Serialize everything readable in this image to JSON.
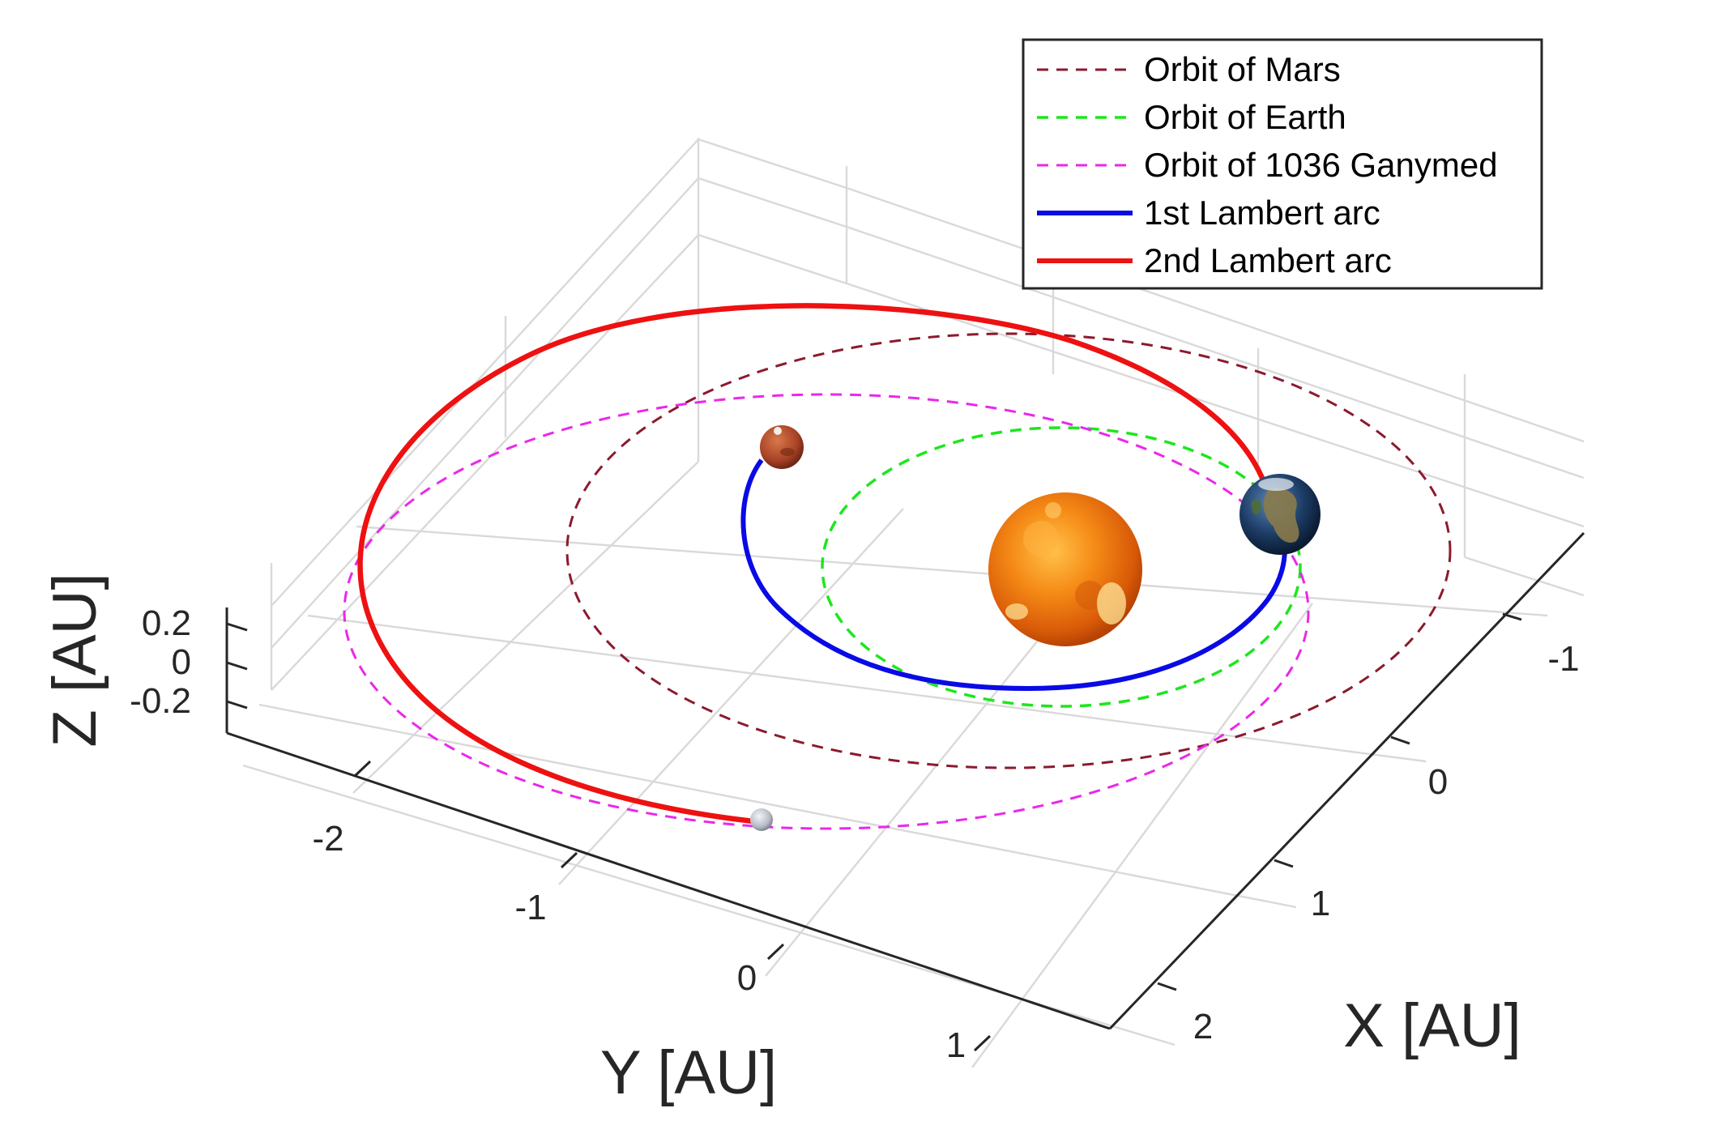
{
  "chart_data": {
    "type": "line",
    "view": "3d-perspective",
    "xlabel": "X [AU]",
    "ylabel": "Y [AU]",
    "zlabel": "Z [AU]",
    "x_ticks": [
      "-1",
      "0",
      "1",
      "2"
    ],
    "y_ticks": [
      "-2",
      "-1",
      "0",
      "1"
    ],
    "z_ticks": [
      "0.2",
      "0",
      "-0.2"
    ],
    "xlim": [
      -1.5,
      2.5
    ],
    "ylim": [
      -2.5,
      1.5
    ],
    "zlim": [
      -0.3,
      0.3
    ],
    "grid": true,
    "legend_position": "top-right",
    "series": [
      {
        "name": "Orbit of Mars",
        "color": "#8b1a2e",
        "style": "dashed",
        "semi_major_axis_au": 1.52
      },
      {
        "name": "Orbit of Earth",
        "color": "#1ee61e",
        "style": "dashed",
        "semi_major_axis_au": 1.0
      },
      {
        "name": "Orbit of 1036 Ganymed",
        "color": "#ea28ea",
        "style": "dashed",
        "semi_major_axis_au": 2.66
      },
      {
        "name": "1st Lambert arc",
        "color": "#0a0ae6",
        "style": "solid"
      },
      {
        "name": "2nd Lambert arc",
        "color": "#ee1111",
        "style": "solid"
      }
    ],
    "bodies": [
      {
        "id": "sun",
        "color": "#f08a1c"
      },
      {
        "id": "earth",
        "color": "#2a4a78"
      },
      {
        "id": "mars",
        "color": "#a8452a"
      },
      {
        "id": "ganymed",
        "color": "#c8ccd4"
      }
    ]
  }
}
